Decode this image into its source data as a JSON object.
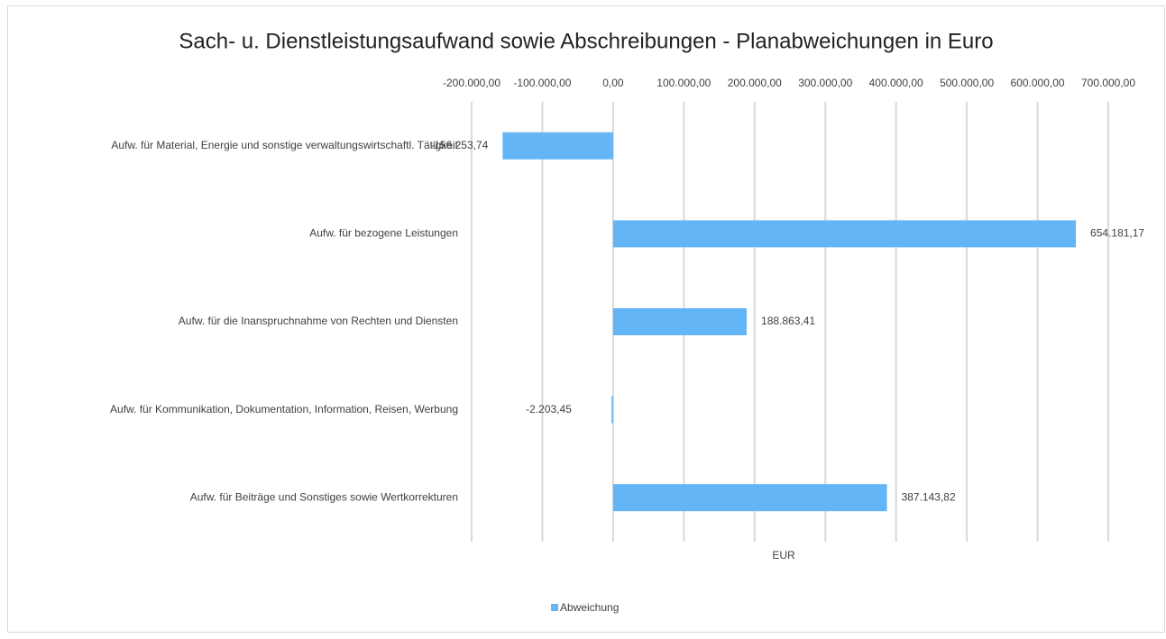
{
  "chart_data": {
    "type": "barh",
    "title": "Sach- u. Dienstleistungsaufwand sowie Abschreibungen - Planabweichungen in Euro",
    "x_label": "EUR",
    "categories": [
      "Aufw. für Material, Energie und sonstige verwaltungswirtschaftl. Tätigkeit",
      "Aufw. für bezogene Leistungen",
      "Aufw. für die Inanspruchnahme von Rechten und Diensten",
      "Aufw. für Kommunikation, Dokumentation, Information, Reisen, Werbung",
      "Aufw. für Beiträge und Sonstiges sowie Wertkorrekturen"
    ],
    "series": [
      {
        "name": "Abweichung",
        "color": "#64b5f6",
        "values": [
          -156253.74,
          654181.17,
          188863.41,
          -2203.45,
          387143.82
        ],
        "value_labels": [
          "-156.253,74",
          "654.181,17",
          "188.863,41",
          "-2.203,45",
          "387.143,82"
        ]
      }
    ],
    "xlim": [
      -200000,
      700000
    ],
    "xticks": [
      {
        "value": -200000,
        "label": "-200.000,00"
      },
      {
        "value": -100000,
        "label": "-100.000,00"
      },
      {
        "value": 0,
        "label": "0,00"
      },
      {
        "value": 100000,
        "label": "100.000,00"
      },
      {
        "value": 200000,
        "label": "200.000,00"
      },
      {
        "value": 300000,
        "label": "300.000,00"
      },
      {
        "value": 400000,
        "label": "400.000,00"
      },
      {
        "value": 500000,
        "label": "500.000,00"
      },
      {
        "value": 600000,
        "label": "600.000,00"
      },
      {
        "value": 700000,
        "label": "700.000,00"
      }
    ],
    "grid": true,
    "legend": "bottom"
  }
}
